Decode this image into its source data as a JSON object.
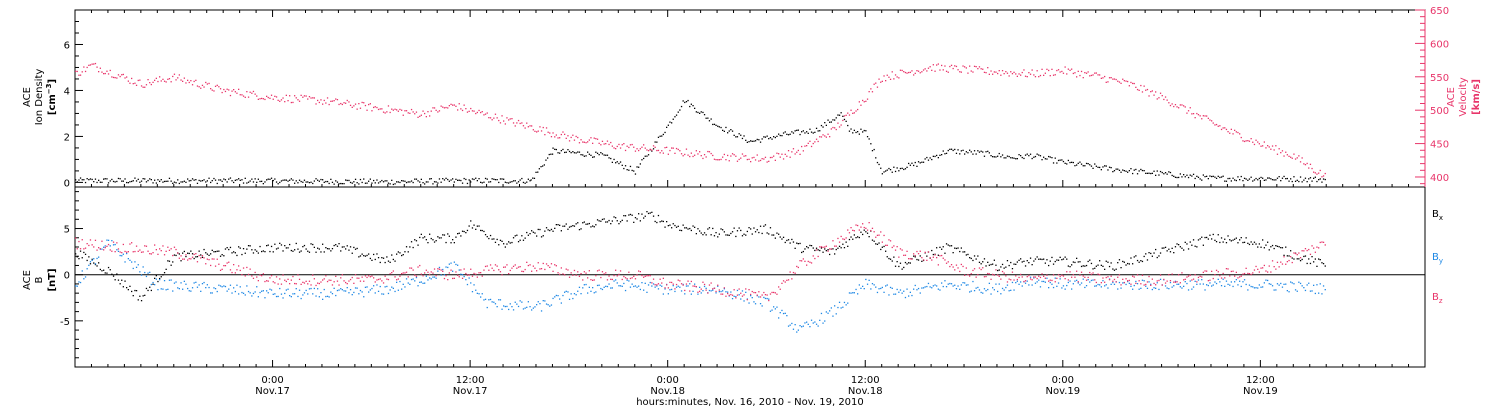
{
  "colors": {
    "density": "#000000",
    "velocity": "#e8356a",
    "bx": "#000000",
    "by": "#1e88e5",
    "bz": "#e8356a"
  },
  "chart_data": [
    {
      "panel": "plasma",
      "type": "scatter",
      "time_start": "2010-11-16 12:00",
      "time_end": "2010-11-19 22:00",
      "data_end": "2010-11-19 16:00",
      "x_ticks": [
        {
          "t": "2010-11-17 00:00",
          "time": "0:00",
          "date": "Nov.17"
        },
        {
          "t": "2010-11-17 12:00",
          "time": "12:00",
          "date": "Nov.17"
        },
        {
          "t": "2010-11-18 00:00",
          "time": "0:00",
          "date": "Nov.18"
        },
        {
          "t": "2010-11-18 12:00",
          "time": "12:00",
          "date": "Nov.18"
        },
        {
          "t": "2010-11-19 00:00",
          "time": "0:00",
          "date": "Nov.19"
        },
        {
          "t": "2010-11-19 12:00",
          "time": "12:00",
          "date": "Nov.19"
        }
      ],
      "xlabel": "hours:minutes, Nov. 16, 2010 - Nov. 19, 2010",
      "left_axis": {
        "label_line1": "ACE",
        "label_line2": "Ion Density",
        "label_line3": "[cm",
        "label_sup": "−3",
        "label_close": "]",
        "ylim": [
          -0.2,
          7.5
        ],
        "ticks": [
          "0",
          "2",
          "4",
          "6"
        ]
      },
      "right_axis": {
        "label_line1": "ACE",
        "label_line2": "Velocity",
        "label_line3": "[km/s]",
        "ylim": [
          385,
          650
        ],
        "ticks": [
          "400",
          "450",
          "500",
          "550",
          "600",
          "650"
        ]
      },
      "series": [
        {
          "key": "density",
          "points": [
            [
              "2010-11-16 12:00",
              0.1
            ],
            [
              "2010-11-16 22:00",
              0.1
            ],
            [
              "2010-11-17 07:00",
              0.05
            ],
            [
              "2010-11-17 12:00",
              0.1
            ],
            [
              "2010-11-17 15:40",
              0.1
            ],
            [
              "2010-11-17 17:00",
              1.4
            ],
            [
              "2010-11-17 20:00",
              1.2
            ],
            [
              "2010-11-17 22:00",
              0.5
            ],
            [
              "2010-11-18 00:00",
              2.5
            ],
            [
              "2010-11-18 01:00",
              3.6
            ],
            [
              "2010-11-18 03:00",
              2.5
            ],
            [
              "2010-11-18 05:00",
              1.8
            ],
            [
              "2010-11-18 07:00",
              2.1
            ],
            [
              "2010-11-18 09:00",
              2.3
            ],
            [
              "2010-11-18 10:30",
              3.0
            ],
            [
              "2010-11-18 11:00",
              2.3
            ],
            [
              "2010-11-18 12:00",
              2.2
            ],
            [
              "2010-11-18 13:00",
              0.5
            ],
            [
              "2010-11-18 15:00",
              0.8
            ],
            [
              "2010-11-18 17:00",
              1.4
            ],
            [
              "2010-11-18 19:00",
              1.3
            ],
            [
              "2010-11-18 21:00",
              1.1
            ],
            [
              "2010-11-18 22:00",
              1.2
            ],
            [
              "2010-11-19 00:00",
              0.9
            ],
            [
              "2010-11-19 03:00",
              0.6
            ],
            [
              "2010-11-19 06:00",
              0.4
            ],
            [
              "2010-11-19 09:00",
              0.2
            ],
            [
              "2010-11-19 12:00",
              0.2
            ],
            [
              "2010-11-19 16:00",
              0.15
            ]
          ]
        },
        {
          "key": "velocity",
          "points": [
            [
              "2010-11-16 12:00",
              555
            ],
            [
              "2010-11-16 13:00",
              568
            ],
            [
              "2010-11-16 16:00",
              540
            ],
            [
              "2010-11-16 18:00",
              550
            ],
            [
              "2010-11-16 21:00",
              530
            ],
            [
              "2010-11-17 00:00",
              520
            ],
            [
              "2010-11-17 03:00",
              515
            ],
            [
              "2010-11-17 06:00",
              505
            ],
            [
              "2010-11-17 09:00",
              495
            ],
            [
              "2010-11-17 11:00",
              508
            ],
            [
              "2010-11-17 12:00",
              500
            ],
            [
              "2010-11-17 15:00",
              480
            ],
            [
              "2010-11-17 18:00",
              460
            ],
            [
              "2010-11-17 21:00",
              447
            ],
            [
              "2010-11-18 00:00",
              440
            ],
            [
              "2010-11-18 03:00",
              432
            ],
            [
              "2010-11-18 06:00",
              428
            ],
            [
              "2010-11-18 08:00",
              440
            ],
            [
              "2010-11-18 10:00",
              470
            ],
            [
              "2010-11-18 11:00",
              495
            ],
            [
              "2010-11-18 12:00",
              520
            ],
            [
              "2010-11-18 13:00",
              550
            ],
            [
              "2010-11-18 16:00",
              565
            ],
            [
              "2010-11-18 19:00",
              560
            ],
            [
              "2010-11-18 22:00",
              555
            ],
            [
              "2010-11-19 00:00",
              560
            ],
            [
              "2010-11-19 02:00",
              552
            ],
            [
              "2010-11-19 04:00",
              540
            ],
            [
              "2010-11-19 06:00",
              520
            ],
            [
              "2010-11-19 08:00",
              495
            ],
            [
              "2010-11-19 10:00",
              470
            ],
            [
              "2010-11-19 12:00",
              450
            ],
            [
              "2010-11-19 14:00",
              432
            ],
            [
              "2010-11-19 16:00",
              400
            ]
          ]
        }
      ]
    },
    {
      "panel": "magnetic",
      "type": "scatter",
      "time_start": "2010-11-16 12:00",
      "time_end": "2010-11-19 22:00",
      "left_axis": {
        "label_line1": "ACE",
        "label_line2": "B",
        "label_line3": "[nT]",
        "ylim": [
          -10,
          9.5
        ],
        "ticks": [
          "-5",
          "0",
          "5"
        ]
      },
      "series": [
        {
          "key": "bx",
          "legend_base": "B",
          "legend_sub": "x",
          "points": [
            [
              "2010-11-16 12:00",
              2.5
            ],
            [
              "2010-11-16 14:00",
              0.5
            ],
            [
              "2010-11-16 16:00",
              -2.5
            ],
            [
              "2010-11-16 18:00",
              2.0
            ],
            [
              "2010-11-16 21:00",
              2.5
            ],
            [
              "2010-11-17 00:00",
              3.0
            ],
            [
              "2010-11-17 04:00",
              3.0
            ],
            [
              "2010-11-17 07:00",
              1.5
            ],
            [
              "2010-11-17 09:00",
              4.0
            ],
            [
              "2010-11-17 11:00",
              4.0
            ],
            [
              "2010-11-17 12:00",
              5.5
            ],
            [
              "2010-11-17 14:00",
              3.5
            ],
            [
              "2010-11-17 17:00",
              5.0
            ],
            [
              "2010-11-17 21:00",
              6.0
            ],
            [
              "2010-11-17 23:00",
              6.5
            ],
            [
              "2010-11-18 00:00",
              5.5
            ],
            [
              "2010-11-18 03:00",
              4.5
            ],
            [
              "2010-11-18 06:00",
              5.0
            ],
            [
              "2010-11-18 08:00",
              3.0
            ],
            [
              "2010-11-18 10:00",
              2.5
            ],
            [
              "2010-11-18 12:00",
              5.0
            ],
            [
              "2010-11-18 14:00",
              1.0
            ],
            [
              "2010-11-18 17:00",
              3.0
            ],
            [
              "2010-11-18 20:00",
              1.0
            ],
            [
              "2010-11-18 22:00",
              1.5
            ],
            [
              "2010-11-19 00:00",
              1.5
            ],
            [
              "2010-11-19 03:00",
              1.0
            ],
            [
              "2010-11-19 06:00",
              2.5
            ],
            [
              "2010-11-19 09:00",
              4.0
            ],
            [
              "2010-11-19 12:00",
              3.5
            ],
            [
              "2010-11-19 16:00",
              1.0
            ]
          ]
        },
        {
          "key": "by",
          "legend_base": "B",
          "legend_sub": "y",
          "points": [
            [
              "2010-11-16 12:00",
              -1.0
            ],
            [
              "2010-11-16 14:00",
              3.5
            ],
            [
              "2010-11-16 17:00",
              -1.0
            ],
            [
              "2010-11-16 21:00",
              -1.5
            ],
            [
              "2010-11-17 00:00",
              -2.0
            ],
            [
              "2010-11-17 04:00",
              -2.0
            ],
            [
              "2010-11-17 07:00",
              -1.5
            ],
            [
              "2010-11-17 09:00",
              -0.5
            ],
            [
              "2010-11-17 11:00",
              1.0
            ],
            [
              "2010-11-17 13:00",
              -3.0
            ],
            [
              "2010-11-17 16:00",
              -3.5
            ],
            [
              "2010-11-17 19:00",
              -1.5
            ],
            [
              "2010-11-17 21:00",
              -1.0
            ],
            [
              "2010-11-18 00:00",
              -1.5
            ],
            [
              "2010-11-18 03:00",
              -1.5
            ],
            [
              "2010-11-18 06:00",
              -3.0
            ],
            [
              "2010-11-18 08:00",
              -6.0
            ],
            [
              "2010-11-18 10:00",
              -4.0
            ],
            [
              "2010-11-18 12:00",
              -1.0
            ],
            [
              "2010-11-18 14:00",
              -2.0
            ],
            [
              "2010-11-18 17:00",
              -1.0
            ],
            [
              "2010-11-18 20:00",
              -1.5
            ],
            [
              "2010-11-18 22:00",
              -0.5
            ],
            [
              "2010-11-19 00:00",
              -1.0
            ],
            [
              "2010-11-19 04:00",
              -1.0
            ],
            [
              "2010-11-19 08:00",
              -1.0
            ],
            [
              "2010-11-19 12:00",
              -1.0
            ],
            [
              "2010-11-19 16:00",
              -1.5
            ]
          ]
        },
        {
          "key": "bz",
          "legend_base": "B",
          "legend_sub": "z",
          "points": [
            [
              "2010-11-16 12:00",
              3.5
            ],
            [
              "2010-11-16 15:00",
              3.0
            ],
            [
              "2010-11-16 18:00",
              2.5
            ],
            [
              "2010-11-16 21:00",
              1.0
            ],
            [
              "2010-11-17 00:00",
              -0.5
            ],
            [
              "2010-11-17 03:00",
              -0.5
            ],
            [
              "2010-11-17 06:00",
              -0.5
            ],
            [
              "2010-11-17 09:00",
              0.5
            ],
            [
              "2010-11-17 11:00",
              0.0
            ],
            [
              "2010-11-17 13:00",
              0.5
            ],
            [
              "2010-11-17 16:00",
              1.0
            ],
            [
              "2010-11-17 19:00",
              0.0
            ],
            [
              "2010-11-17 22:00",
              0.0
            ],
            [
              "2010-11-18 00:00",
              -1.0
            ],
            [
              "2010-11-18 03:00",
              -1.5
            ],
            [
              "2010-11-18 06:00",
              -2.5
            ],
            [
              "2010-11-18 08:00",
              1.0
            ],
            [
              "2010-11-18 10:00",
              3.5
            ],
            [
              "2010-11-18 12:00",
              5.5
            ],
            [
              "2010-11-18 14:00",
              2.5
            ],
            [
              "2010-11-18 16:00",
              2.0
            ],
            [
              "2010-11-18 18:00",
              0.5
            ],
            [
              "2010-11-18 20:00",
              0.0
            ],
            [
              "2010-11-18 22:00",
              -0.5
            ],
            [
              "2010-11-19 00:00",
              0.0
            ],
            [
              "2010-11-19 03:00",
              -0.5
            ],
            [
              "2010-11-19 06:00",
              -0.5
            ],
            [
              "2010-11-19 09:00",
              0.0
            ],
            [
              "2010-11-19 12:00",
              0.5
            ],
            [
              "2010-11-19 16:00",
              3.5
            ]
          ]
        }
      ]
    }
  ]
}
